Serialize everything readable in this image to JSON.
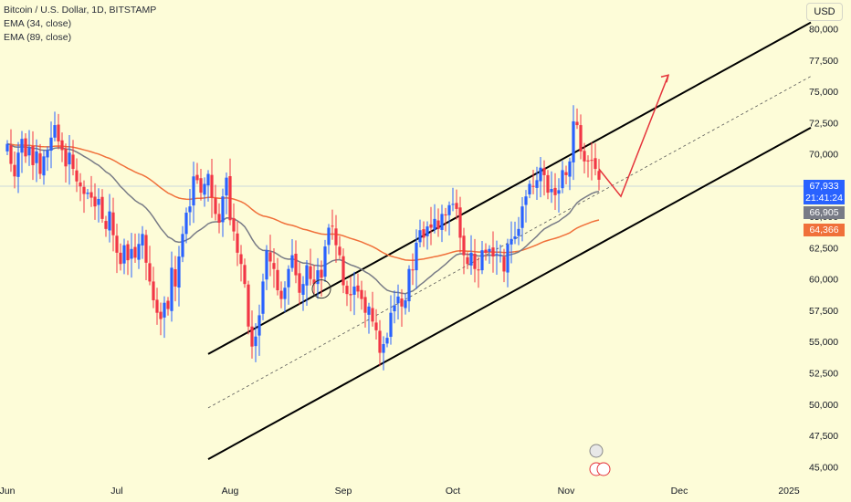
{
  "legend": {
    "symbol": "Bitcoin / U.S. Dollar, 1D, BITSTAMP",
    "ema_short": "EMA (34, close)",
    "ema_long": "EMA (89, close)"
  },
  "currency": "USD",
  "price_tags": {
    "last": {
      "value": "67,933",
      "countdown": "21:41:24",
      "color": "#2962FF"
    },
    "ema34": {
      "value": "66,905",
      "color": "#787B86"
    },
    "ema89": {
      "value": "64,366",
      "color": "#F0703A"
    }
  },
  "chart_data": {
    "type": "candlestick",
    "instrument": "Bitcoin / U.S. Dollar",
    "interval": "1D",
    "exchange": "BITSTAMP",
    "y_ticks": [
      "80,000",
      "77,500",
      "75,000",
      "72,500",
      "70,000",
      "67,500",
      "65,000",
      "62,500",
      "60,000",
      "57,500",
      "55,000",
      "52,500",
      "50,000",
      "47,500",
      "45,000"
    ],
    "x_ticks": [
      "Jun",
      "Jul",
      "Aug",
      "Sep",
      "Oct",
      "Nov",
      "Dec",
      "2025"
    ],
    "ylim": [
      44000,
      82300
    ],
    "xlim_days": [
      -2,
      218
    ],
    "up_color": "#2962FF",
    "down_color": "#F23645",
    "closes": [
      70800,
      69200,
      68200,
      70100,
      71200,
      69800,
      70500,
      69100,
      70200,
      68400,
      69800,
      70300,
      71300,
      72300,
      71000,
      70300,
      69000,
      70100,
      68800,
      67800,
      67400,
      66800,
      66900,
      66500,
      65800,
      66400,
      64800,
      64000,
      65400,
      63500,
      62100,
      61200,
      62700,
      61500,
      62400,
      61700,
      62800,
      63600,
      61300,
      59800,
      58300,
      57300,
      56800,
      58100,
      57600,
      60900,
      59400,
      61800,
      63600,
      65300,
      65800,
      68200,
      67900,
      66900,
      67600,
      68400,
      66500,
      65200,
      64500,
      66600,
      68100,
      64700,
      63800,
      62100,
      61200,
      59600,
      56200,
      54600,
      55400,
      57100,
      59800,
      62300,
      61400,
      60800,
      59100,
      58400,
      59300,
      60800,
      61900,
      60300,
      58900,
      59600,
      61100,
      60000,
      59600,
      60700,
      60100,
      62600,
      64100,
      64200,
      62700,
      61900,
      59500,
      58800,
      58700,
      59400,
      59000,
      58400,
      57300,
      57800,
      56600,
      55900,
      54100,
      54800,
      55300,
      57300,
      57900,
      58600,
      57800,
      58300,
      60800,
      60700,
      62900,
      63900,
      63300,
      64200,
      64100,
      64800,
      64000,
      65200,
      65100,
      65900,
      66000,
      65600,
      63300,
      61900,
      61200,
      62100,
      60800,
      60700,
      62300,
      62100,
      62400,
      61800,
      62000,
      61900,
      60600,
      62800,
      63200,
      63400,
      64000,
      65800,
      66600,
      67600,
      67400,
      67900,
      68900,
      68300,
      66900,
      67200,
      66700,
      67100,
      68700,
      68300,
      69400,
      72600,
      72300,
      70200,
      69400,
      69400,
      69500,
      68800,
      67933
    ],
    "ema34_last": 66905,
    "ema89_last": 64366,
    "last_price": 67933,
    "last_countdown": "21:41:24",
    "channel": {
      "upper_line": {
        "from": [
          55,
          54000
        ],
        "to": [
          220,
          80500
        ]
      },
      "median_line": {
        "from": [
          55,
          49700
        ],
        "to": [
          220,
          76200
        ]
      },
      "lower_line": {
        "from": [
          55,
          45600
        ],
        "to": [
          220,
          72100
        ]
      }
    },
    "projection": {
      "points": [
        [
          162,
          68800
        ],
        [
          168,
          66600
        ],
        [
          181,
          76300
        ]
      ]
    },
    "grid": false,
    "legend_position": "top-left"
  }
}
